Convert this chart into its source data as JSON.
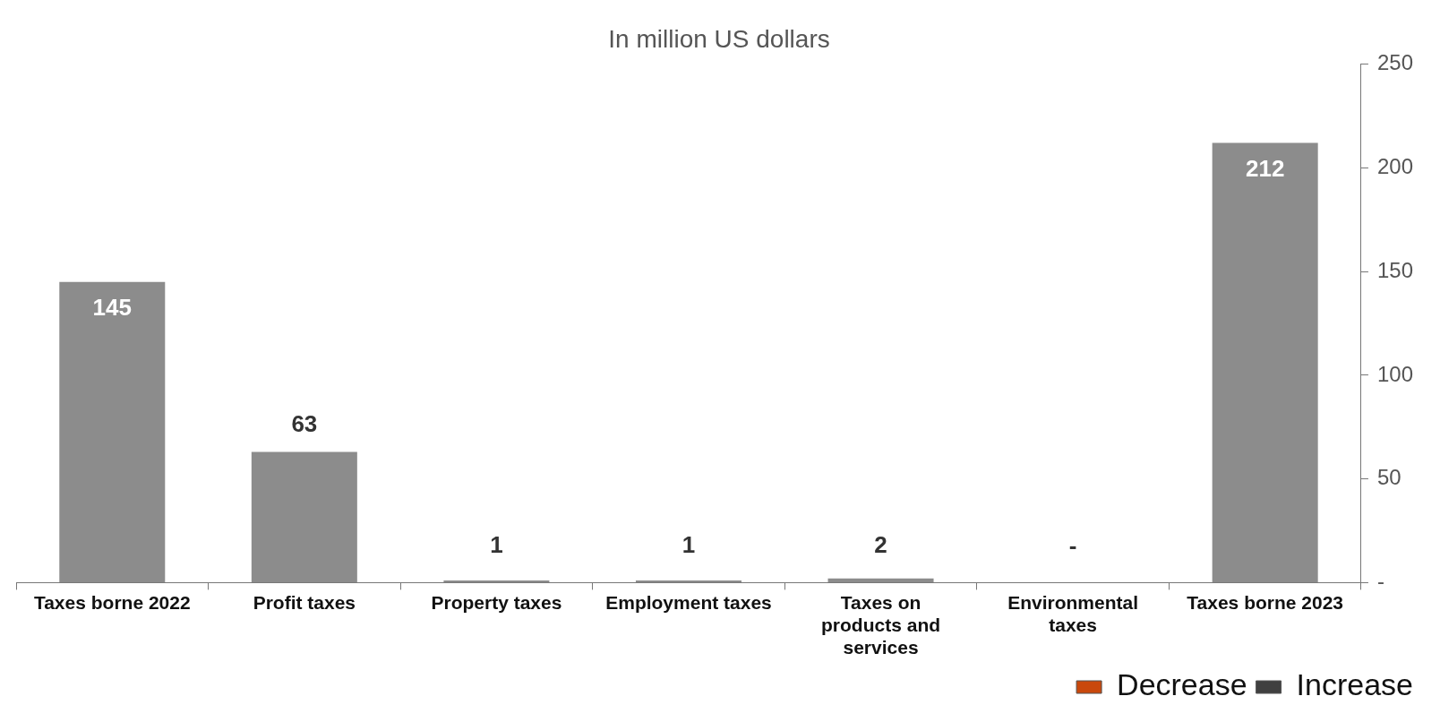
{
  "chart_data": {
    "type": "bar",
    "title": "In million US dollars",
    "categories": [
      "Taxes borne 2022",
      "Profit taxes",
      "Property taxes",
      "Employment taxes",
      "Taxes on products and services",
      "Environmental taxes",
      "Taxes borne 2023"
    ],
    "series": [
      {
        "color": "#8c8c8c",
        "values": [
          145,
          63,
          1,
          1,
          2,
          0,
          212
        ],
        "value_labels": [
          "145",
          "63",
          "1",
          "1",
          "2",
          "-",
          "212"
        ]
      },
      {
        "name": "Decrease",
        "color": "#c9480c",
        "values": [
          null,
          null,
          null,
          null,
          null,
          null,
          null
        ]
      },
      {
        "name": "Increase",
        "color": "#404040",
        "values": [
          null,
          null,
          null,
          null,
          null,
          null,
          null
        ]
      }
    ],
    "ylim": [
      0,
      250
    ],
    "yticks": [
      {
        "value": 0,
        "label": "-"
      },
      50,
      100,
      150,
      200,
      250
    ],
    "grid": false,
    "legend": "bottom right"
  }
}
